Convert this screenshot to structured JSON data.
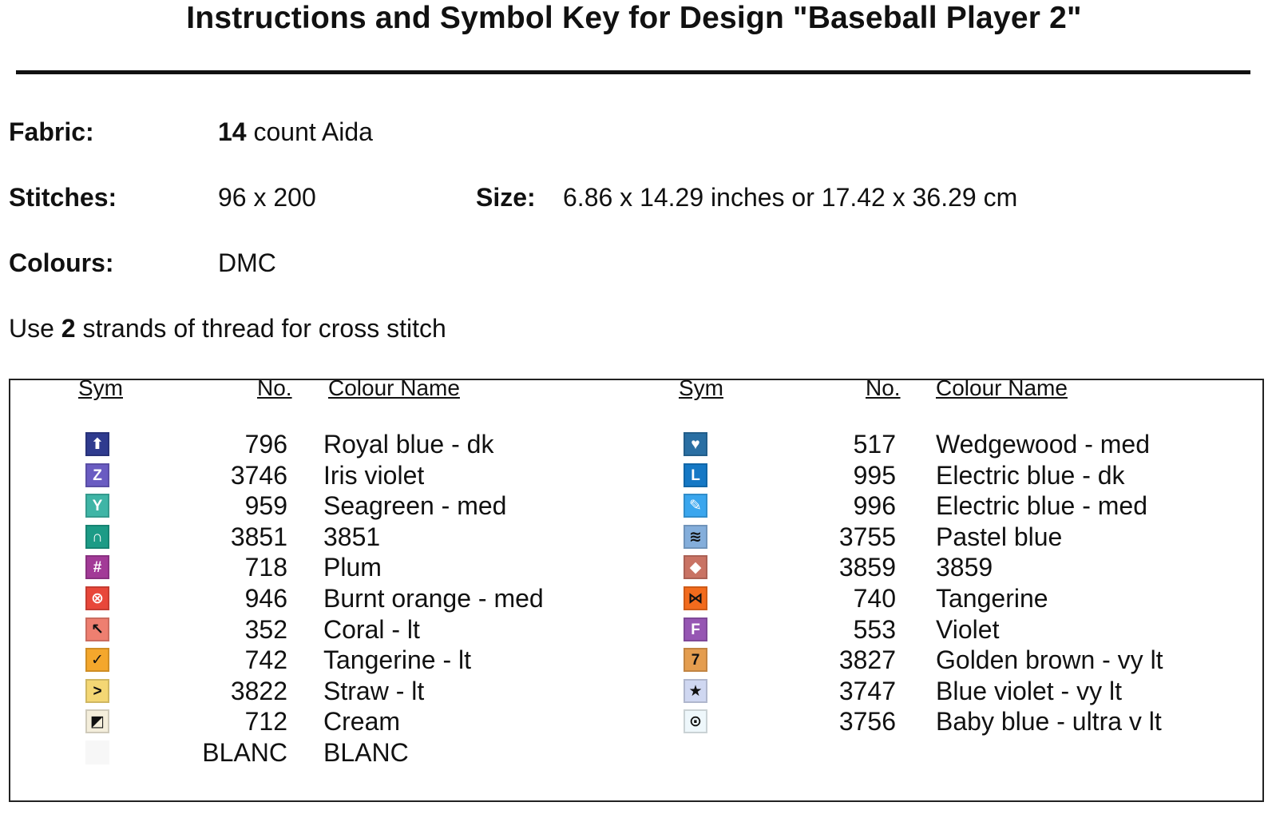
{
  "title": "Instructions and Symbol Key for Design \"Baseball Player 2\"",
  "info": {
    "fabric_label": "Fabric:",
    "fabric_count": "14",
    "fabric_rest": " count Aida",
    "stitches_label": "Stitches:",
    "stitches_value": "96 x 200",
    "size_label": "Size:",
    "size_value": "6.86 x 14.29 inches or 17.42 x 36.29 cm",
    "colours_label": "Colours:",
    "colours_value": "DMC",
    "strands_pre": "Use ",
    "strands_num": "2",
    "strands_post": " strands of thread for cross stitch"
  },
  "key": {
    "headers": {
      "sym": "Sym",
      "no": "No.",
      "name": "Colour Name"
    },
    "left": [
      {
        "no": "796",
        "name": "Royal blue -  dk",
        "icon": "arrow-up-box",
        "glyph": "⬆",
        "bg": "#2f3b8f",
        "fg": "#ffffff"
      },
      {
        "no": "3746",
        "name": "Iris violet",
        "icon": "letter-z",
        "glyph": "Z",
        "bg": "#6a5cc2",
        "fg": "#ffffff"
      },
      {
        "no": "959",
        "name": "Seagreen -  med",
        "icon": "letter-y-box",
        "glyph": "Y",
        "bg": "#3fb5a6",
        "fg": "#ffffff"
      },
      {
        "no": "3851",
        "name": "3851",
        "icon": "arch",
        "glyph": "∩",
        "bg": "#1c9b86",
        "fg": "#ffffff"
      },
      {
        "no": "718",
        "name": "Plum",
        "icon": "hash",
        "glyph": "#",
        "bg": "#a23a97",
        "fg": "#ffffff"
      },
      {
        "no": "946",
        "name": "Burnt orange -  med",
        "icon": "circle-cross",
        "glyph": "⊗",
        "bg": "#e8473a",
        "fg": "#ffffff"
      },
      {
        "no": "352",
        "name": "Coral -  lt",
        "icon": "hammer",
        "glyph": "↖",
        "bg": "#ee7f70",
        "fg": "#111111"
      },
      {
        "no": "742",
        "name": "Tangerine -  lt",
        "icon": "check-mark",
        "glyph": "✓",
        "bg": "#f4a72c",
        "fg": "#111111"
      },
      {
        "no": "3822",
        "name": "Straw -  lt",
        "icon": "greater-than",
        "glyph": ">",
        "bg": "#f4d774",
        "fg": "#111111"
      },
      {
        "no": "712",
        "name": "Cream",
        "icon": "half-square",
        "glyph": "◩",
        "bg": "#f4eedb",
        "fg": "#111111"
      },
      {
        "no": "BLANC",
        "name": "BLANC",
        "icon": "blank",
        "glyph": "",
        "bg": "#f7f7f7",
        "fg": "#111111"
      }
    ],
    "right": [
      {
        "no": "517",
        "name": "Wedgewood -  med",
        "icon": "heart",
        "glyph": "♥",
        "bg": "#2a6fa3",
        "fg": "#ffffff"
      },
      {
        "no": "995",
        "name": "Electric blue -  dk",
        "icon": "letter-l",
        "glyph": "L",
        "bg": "#1578c5",
        "fg": "#ffffff"
      },
      {
        "no": "996",
        "name": "Electric blue -  med",
        "icon": "pencil",
        "glyph": "✎",
        "bg": "#3aa6ee",
        "fg": "#ffffff"
      },
      {
        "no": "3755",
        "name": "Pastel blue",
        "icon": "diagonal-stripes",
        "glyph": "≋",
        "bg": "#84aedb",
        "fg": "#111111"
      },
      {
        "no": "3859",
        "name": "3859",
        "icon": "diamond",
        "glyph": "◆",
        "bg": "#c97364",
        "fg": "#ffffff"
      },
      {
        "no": "740",
        "name": "Tangerine",
        "icon": "bowtie",
        "glyph": "⋈",
        "bg": "#f26b1d",
        "fg": "#111111"
      },
      {
        "no": "553",
        "name": "Violet",
        "icon": "letter-f",
        "glyph": "F",
        "bg": "#9656b3",
        "fg": "#ffffff"
      },
      {
        "no": "3827",
        "name": "Golden brown -  vy lt",
        "icon": "number-7-box",
        "glyph": "7",
        "bg": "#e49d4f",
        "fg": "#111111"
      },
      {
        "no": "3747",
        "name": "Blue violet -  vy lt",
        "icon": "star",
        "glyph": "★",
        "bg": "#cfd7f1",
        "fg": "#111111"
      },
      {
        "no": "3756",
        "name": "Baby blue -  ultra v lt",
        "icon": "circle-dot",
        "glyph": "⊙",
        "bg": "#eef7fb",
        "fg": "#111111"
      }
    ]
  }
}
